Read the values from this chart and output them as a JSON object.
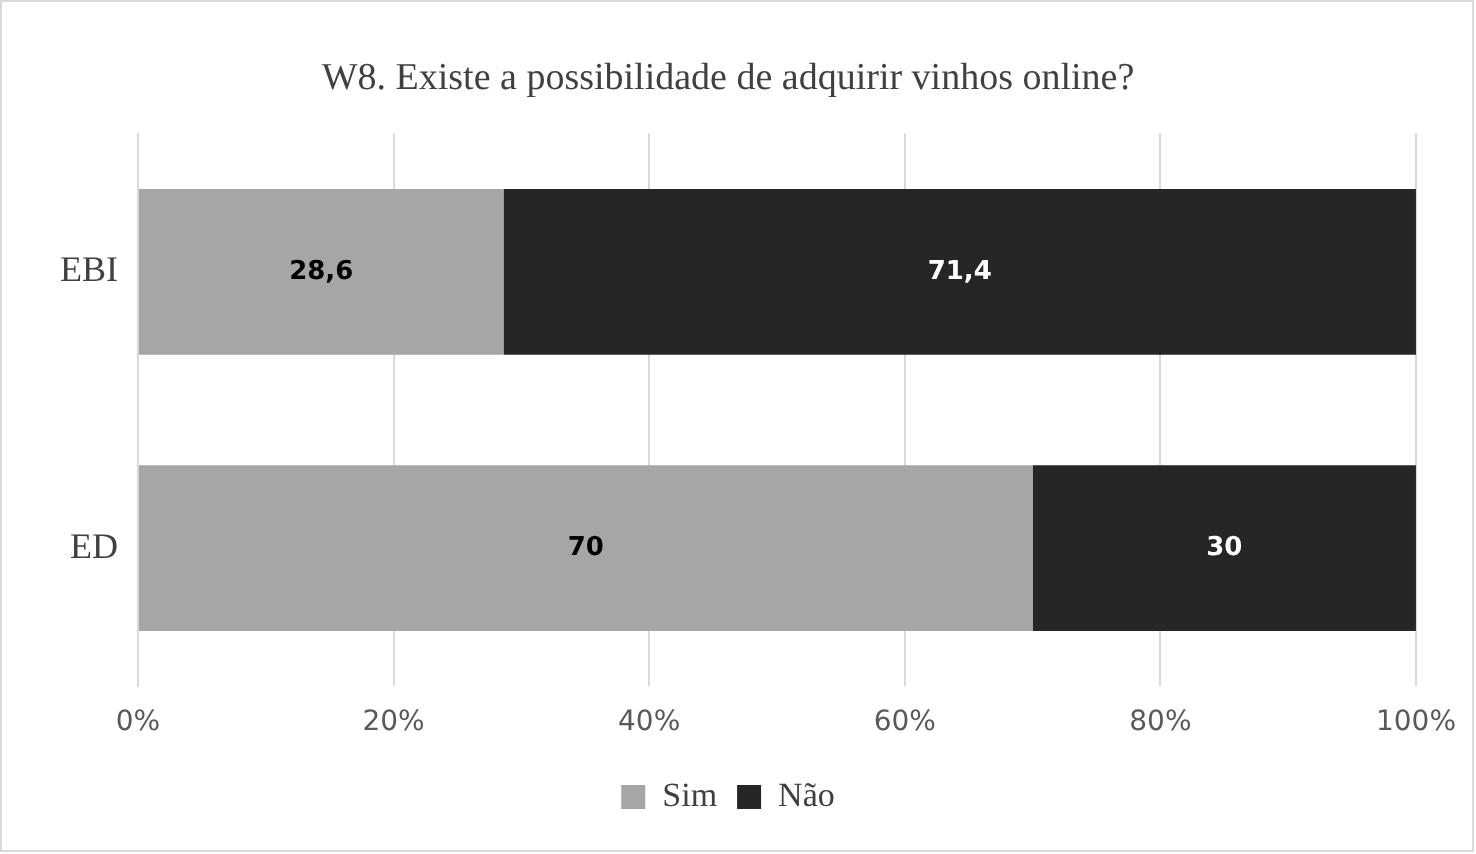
{
  "chart_data": {
    "type": "bar",
    "orientation": "horizontal",
    "stacked": true,
    "title": "W8. Existe a possibilidade de adquirir vinhos online?",
    "categories": [
      "EBI",
      "ED"
    ],
    "series": [
      {
        "name": "Sim",
        "color": "#a6a6a6",
        "values": [
          28.6,
          70
        ],
        "value_labels": [
          "28,6",
          "70"
        ]
      },
      {
        "name": "Não",
        "color": "#262626",
        "values": [
          71.4,
          30
        ],
        "value_labels": [
          "71,4",
          "30"
        ]
      }
    ],
    "xlim": [
      0,
      100
    ],
    "xticks": [
      {
        "value": 0,
        "label": "0%"
      },
      {
        "value": 20,
        "label": "20%"
      },
      {
        "value": 40,
        "label": "40%"
      },
      {
        "value": 60,
        "label": "60%"
      },
      {
        "value": 80,
        "label": "80%"
      },
      {
        "value": 100,
        "label": "100%"
      }
    ],
    "grid": "x",
    "legend": "bottom"
  }
}
